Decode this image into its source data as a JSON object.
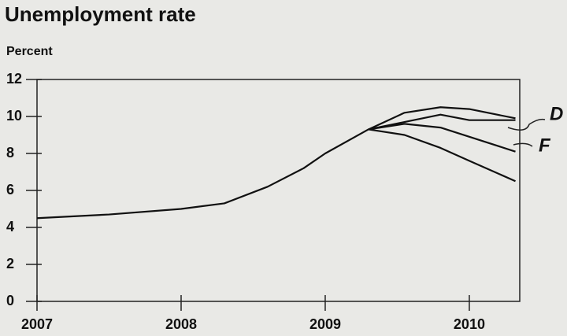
{
  "chart_data": {
    "type": "line",
    "title": "Unemployment rate",
    "subtitle": "Percent",
    "annotations": [
      "D",
      "F"
    ],
    "series": [
      {
        "color": "#111111",
        "x": [
          2007,
          2007.5,
          2008,
          2008.3,
          2008.6,
          2008.85,
          2009,
          2009.3
        ],
        "values": [
          4.5,
          4.7,
          5.0,
          5.3,
          6.2,
          7.2,
          8.0,
          9.3
        ]
      },
      {
        "color": "#111111",
        "x": [
          2009.3,
          2009.55,
          2009.8,
          2010.0,
          2010.32
        ],
        "values": [
          9.3,
          10.2,
          10.5,
          10.4,
          9.9
        ]
      },
      {
        "color": "#111111",
        "x": [
          2009.3,
          2009.55,
          2009.8,
          2010.0,
          2010.32
        ],
        "values": [
          9.3,
          9.7,
          10.1,
          9.8,
          9.8
        ]
      },
      {
        "color": "#111111",
        "x": [
          2009.3,
          2009.55,
          2009.8,
          2010.0,
          2010.32
        ],
        "values": [
          9.3,
          9.6,
          9.4,
          8.9,
          8.1
        ]
      },
      {
        "color": "#111111",
        "x": [
          2009.3,
          2009.55,
          2009.8,
          2010.0,
          2010.32
        ],
        "values": [
          9.3,
          9.0,
          8.3,
          7.6,
          6.5
        ]
      }
    ],
    "xlim": [
      2007,
      2010.35
    ],
    "xticks": [
      2007,
      2008,
      2009,
      2010
    ],
    "ylim": [
      0,
      12
    ],
    "yticks": [
      0,
      2,
      4,
      6,
      8,
      10,
      12
    ],
    "grid": false
  }
}
